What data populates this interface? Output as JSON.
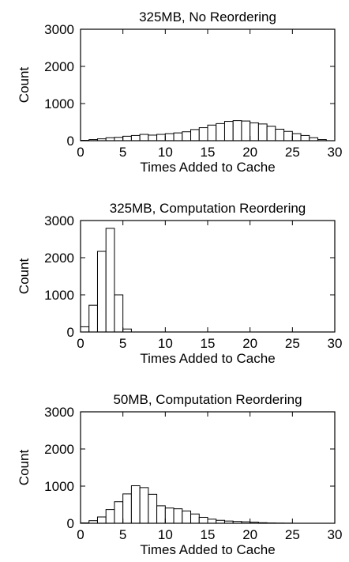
{
  "chart_data": [
    {
      "type": "bar",
      "title": "325MB, No Reordering",
      "xlabel": "Times Added to Cache",
      "ylabel": "Count",
      "xlim": [
        0,
        30
      ],
      "ylim": [
        0,
        3000
      ],
      "xticks": [
        0,
        5,
        10,
        15,
        20,
        25,
        30
      ],
      "yticks": [
        0,
        1000,
        2000,
        3000
      ],
      "bin_width": 1,
      "x": [
        0,
        1,
        2,
        3,
        4,
        5,
        6,
        7,
        8,
        9,
        10,
        11,
        12,
        13,
        14,
        15,
        16,
        17,
        18,
        19,
        20,
        21,
        22,
        23,
        24,
        25,
        26,
        27,
        28,
        29
      ],
      "values": [
        10,
        30,
        50,
        80,
        90,
        120,
        140,
        170,
        150,
        170,
        190,
        210,
        240,
        300,
        350,
        420,
        460,
        520,
        540,
        530,
        480,
        450,
        390,
        310,
        250,
        190,
        140,
        80,
        30,
        0
      ]
    },
    {
      "type": "bar",
      "title": "325MB, Computation Reordering",
      "xlabel": "Times Added to Cache",
      "ylabel": "Count",
      "xlim": [
        0,
        30
      ],
      "ylim": [
        0,
        3000
      ],
      "xticks": [
        0,
        5,
        10,
        15,
        20,
        25,
        30
      ],
      "yticks": [
        0,
        1000,
        2000,
        3000
      ],
      "bin_width": 1,
      "x": [
        0,
        1,
        2,
        3,
        4,
        5,
        6,
        7,
        8,
        9,
        10,
        11,
        12,
        13,
        14,
        15,
        16,
        17,
        18,
        19,
        20,
        21,
        22,
        23,
        24,
        25,
        26,
        27,
        28,
        29
      ],
      "values": [
        140,
        720,
        2170,
        2790,
        1000,
        80,
        0,
        0,
        0,
        0,
        0,
        0,
        0,
        0,
        0,
        0,
        0,
        0,
        0,
        0,
        0,
        0,
        0,
        0,
        0,
        0,
        0,
        0,
        0,
        0
      ]
    },
    {
      "type": "bar",
      "title": "50MB, Computation Reordering",
      "xlabel": "Times Added to Cache",
      "ylabel": "Count",
      "xlim": [
        0,
        30
      ],
      "ylim": [
        0,
        3000
      ],
      "xticks": [
        0,
        5,
        10,
        15,
        20,
        25,
        30
      ],
      "yticks": [
        0,
        1000,
        2000,
        3000
      ],
      "bin_width": 1,
      "x": [
        0,
        1,
        2,
        3,
        4,
        5,
        6,
        7,
        8,
        9,
        10,
        11,
        12,
        13,
        14,
        15,
        16,
        17,
        18,
        19,
        20,
        21,
        22,
        23,
        24,
        25,
        26,
        27,
        28,
        29
      ],
      "values": [
        10,
        70,
        170,
        370,
        580,
        790,
        1010,
        960,
        780,
        470,
        410,
        390,
        330,
        250,
        160,
        110,
        80,
        60,
        50,
        40,
        30,
        15,
        8,
        5,
        3,
        0,
        0,
        0,
        0,
        0
      ]
    }
  ]
}
